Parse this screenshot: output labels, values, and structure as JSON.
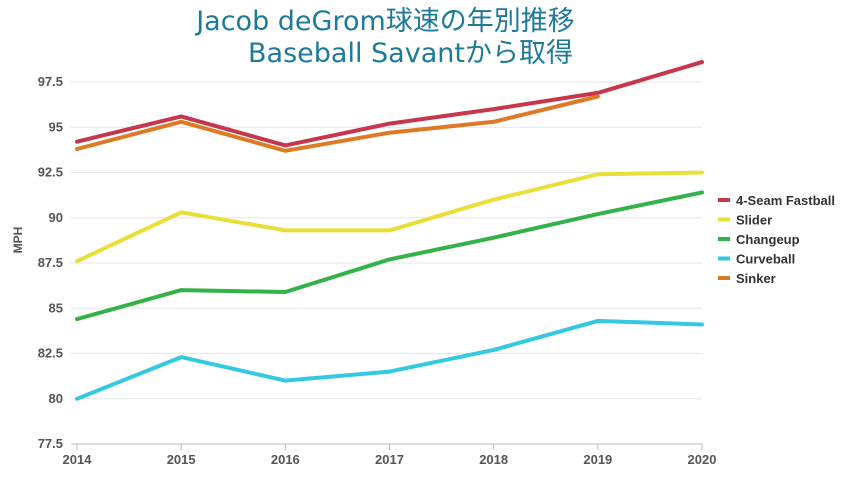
{
  "chart_data": {
    "type": "line",
    "title": "Jacob deGrom球速の年別推移",
    "subtitle": "Baseball Savantから取得",
    "xlabel": "",
    "ylabel": "MPH",
    "categories": [
      "2014",
      "2015",
      "2016",
      "2017",
      "2018",
      "2019",
      "2020"
    ],
    "ylim": [
      77.5,
      97.5
    ],
    "yticks": [
      "77.5",
      "80",
      "82.5",
      "85",
      "87.5",
      "90",
      "92.5",
      "95",
      "97.5"
    ],
    "yticks_values": [
      77.5,
      80,
      82.5,
      85,
      87.5,
      90,
      92.5,
      95,
      97.5
    ],
    "grid": true,
    "legend_position": "right",
    "series": [
      {
        "name": "4-Seam Fastball",
        "color": "#c7364a",
        "values": [
          94.2,
          95.6,
          94.0,
          95.2,
          96.0,
          96.9,
          98.6
        ]
      },
      {
        "name": "Slider",
        "color": "#eadf38",
        "values": [
          87.6,
          90.3,
          89.3,
          89.3,
          91.0,
          92.4,
          92.5
        ]
      },
      {
        "name": "Changeup",
        "color": "#33b24a",
        "values": [
          84.4,
          86.0,
          85.9,
          87.7,
          88.9,
          90.2,
          91.4
        ]
      },
      {
        "name": "Curveball",
        "color": "#33c9e0",
        "values": [
          80.0,
          82.3,
          81.0,
          81.5,
          82.7,
          84.3,
          84.1
        ]
      },
      {
        "name": "Sinker",
        "color": "#de7a25",
        "values": [
          93.8,
          95.3,
          93.7,
          94.7,
          95.3,
          96.7,
          null
        ]
      }
    ]
  }
}
